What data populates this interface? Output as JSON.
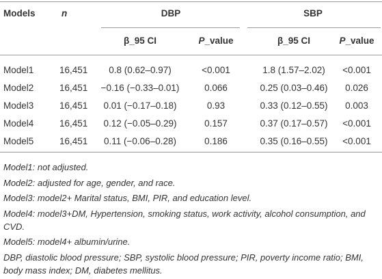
{
  "table": {
    "header": {
      "models": "Models",
      "n": "n",
      "dbp": "DBP",
      "sbp": "SBP",
      "sub": [
        {
          "text": "β_95 CI"
        },
        {
          "italic": "P",
          "rest": "_value"
        },
        {
          "text": "β_95 CI"
        },
        {
          "italic": "P",
          "rest": "_value"
        }
      ]
    },
    "rows": [
      [
        "Model1",
        "16,451",
        "0.8 (0.62–0.97)",
        "<0.001",
        "1.8 (1.57–2.02)",
        "<0.001"
      ],
      [
        "Model2",
        "16,451",
        "−0.16 (−0.33–0.01)",
        "0.066",
        "0.25 (0.03–0.46)",
        "0.026"
      ],
      [
        "Model3",
        "16,451",
        "0.01 (−0.17–0.18)",
        "0.93",
        "0.33 (0.12–0.55)",
        "0.003"
      ],
      [
        "Model4",
        "16,451",
        "0.12 (−0.05–0.29)",
        "0.157",
        "0.37 (0.17–0.57)",
        "<0.001"
      ],
      [
        "Model5",
        "16,451",
        "0.11 (−0.06–0.28)",
        "0.186",
        "0.35 (0.16–0.55)",
        "<0.001"
      ]
    ],
    "footnotes": [
      "Model1: not adjusted.",
      "Model2: adjusted for age, gender, and race.",
      "Model3: model2+ Marital status, BMI, PIR, and education level.",
      "Model4: model3+DM, Hypertension, smoking status, work activity, alcohol consumption, and CVD.",
      "Model5: model4+ albumin/urine.",
      "DBP, diastolic blood pressure; SBP, systolic blood pressure; PIR, poverty income ratio; BMI, body mass index; DM, diabetes mellitus."
    ]
  }
}
